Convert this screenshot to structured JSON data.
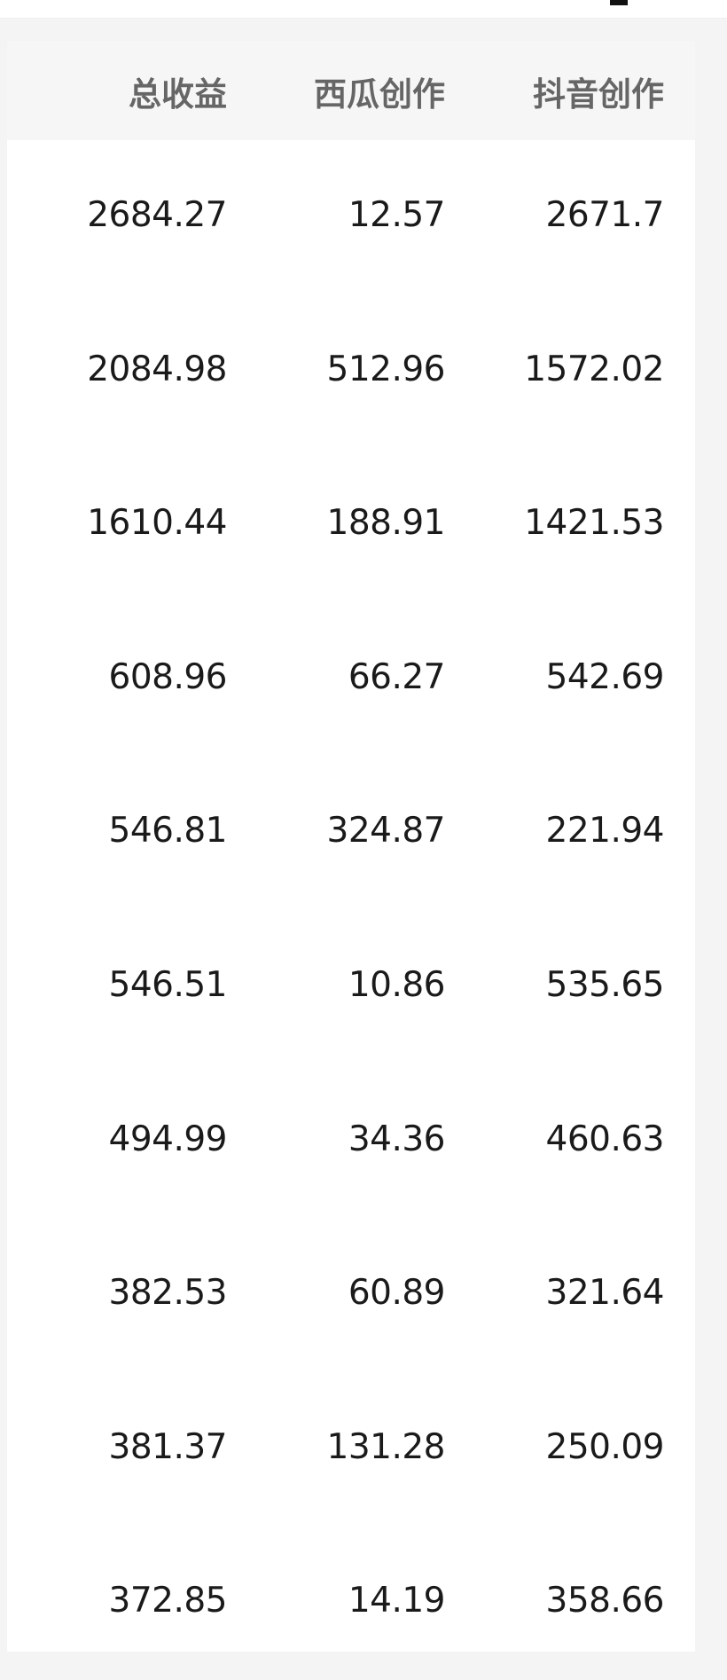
{
  "table": {
    "columns": [
      "总收益",
      "西瓜创作",
      "抖音创作"
    ],
    "rows": [
      [
        "2684.27",
        "12.57",
        "2671.7"
      ],
      [
        "2084.98",
        "512.96",
        "1572.02"
      ],
      [
        "1610.44",
        "188.91",
        "1421.53"
      ],
      [
        "608.96",
        "66.27",
        "542.69"
      ],
      [
        "546.81",
        "324.87",
        "221.94"
      ],
      [
        "546.51",
        "10.86",
        "535.65"
      ],
      [
        "494.99",
        "34.36",
        "460.63"
      ],
      [
        "382.53",
        "60.89",
        "321.64"
      ],
      [
        "381.37",
        "131.28",
        "250.09"
      ],
      [
        "372.85",
        "14.19",
        "358.66"
      ]
    ]
  }
}
